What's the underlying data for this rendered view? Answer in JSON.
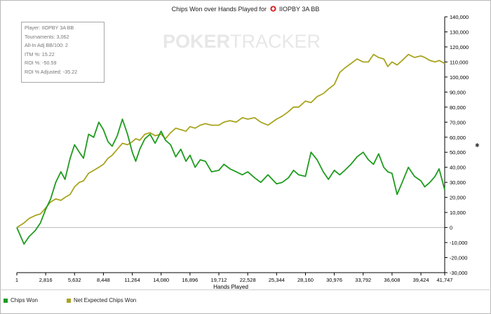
{
  "title": "Chips Won over Hands Played for",
  "title_player": "IIOPBY 3A BB",
  "watermark_a": "POKER",
  "watermark_b": "TRACKER",
  "info": [
    "Player: IIOPBY 3A BB",
    "Tournaments: 3,062",
    "All-In Adj BB/100: 2",
    "ITM %: 15.22",
    "ROI %: -50.59",
    "ROI % Adjusted: -35.22"
  ],
  "legend": {
    "chips_won": "Chips Won",
    "net_expected": "Net Expected Chips Won"
  },
  "colors": {
    "chips_won": "#1e9b1e",
    "net_expected": "#a9a41f",
    "axis": "#000000",
    "grid": "#b9b9b9"
  },
  "chart_data": {
    "type": "line",
    "title": "Chips Won over Hands Played for IIOPBY 3A BB",
    "xlabel": "Hands Played",
    "ylabel": "",
    "xlim": [
      1,
      41747
    ],
    "ylim": [
      -30000,
      140000
    ],
    "x_ticks": [
      1,
      2816,
      5632,
      8448,
      11264,
      14080,
      16896,
      19712,
      22528,
      25344,
      28160,
      30976,
      33792,
      36608,
      39424,
      41747
    ],
    "x_tick_labels": [
      "1",
      "2,816",
      "5,632",
      "8,448",
      "11,264",
      "14,080",
      "16,896",
      "19,712",
      "22,528",
      "25,344",
      "28,160",
      "30,976",
      "33,792",
      "36,608",
      "39,424",
      "41,747"
    ],
    "y_ticks": [
      -30000,
      -20000,
      -10000,
      0,
      10000,
      20000,
      30000,
      40000,
      50000,
      60000,
      70000,
      80000,
      90000,
      100000,
      110000,
      120000,
      130000,
      140000
    ],
    "y_tick_labels": [
      "-30,000",
      "-20,000",
      "-10,000",
      "0",
      "10,000",
      "20,000",
      "30,000",
      "40,000",
      "50,000",
      "60,000",
      "70,000",
      "80,000",
      "90,000",
      "100,000",
      "110,000",
      "120,000",
      "130,000",
      "140,000"
    ],
    "grid": "horizontal line at 0",
    "legend_position": "bottom-left",
    "series": [
      {
        "name": "Chips Won",
        "x": [
          1,
          700,
          1200,
          1800,
          2300,
          2816,
          3300,
          3800,
          4300,
          4700,
          5200,
          5632,
          6100,
          6500,
          7000,
          7500,
          8000,
          8448,
          8900,
          9300,
          9800,
          10300,
          10800,
          11264,
          11600,
          12000,
          12500,
          13000,
          13500,
          14080,
          14500,
          15000,
          15500,
          16000,
          16500,
          16896,
          17400,
          17900,
          18400,
          19000,
          19712,
          20200,
          20800,
          21400,
          22000,
          22528,
          23200,
          23800,
          24500,
          25344,
          25900,
          26500,
          27000,
          27500,
          28160,
          28700,
          29300,
          29900,
          30400,
          30976,
          31500,
          32000,
          32600,
          33200,
          33792,
          34300,
          34800,
          35300,
          35800,
          36200,
          36608,
          37100,
          37600,
          38200,
          38800,
          39424,
          39800,
          40300,
          40800,
          41200,
          41747
        ],
        "values": [
          0,
          -11000,
          -6000,
          -2000,
          3000,
          12000,
          19000,
          30000,
          37000,
          32000,
          46000,
          55000,
          50000,
          46000,
          62000,
          60000,
          70000,
          65000,
          57000,
          54000,
          61000,
          72000,
          62000,
          50000,
          44000,
          52000,
          59000,
          62000,
          56000,
          64000,
          58000,
          55000,
          47000,
          52000,
          44000,
          48000,
          40000,
          45000,
          44000,
          37000,
          38000,
          42000,
          39000,
          37000,
          35000,
          37000,
          33000,
          30000,
          35000,
          29000,
          30000,
          33000,
          38000,
          35000,
          34000,
          50000,
          45000,
          37000,
          32000,
          38000,
          35000,
          38000,
          42000,
          47000,
          50000,
          45000,
          42000,
          49000,
          40000,
          37000,
          36000,
          22000,
          30000,
          40000,
          34000,
          31000,
          27000,
          30000,
          34000,
          39000,
          25000
        ]
      },
      {
        "name": "Net Expected Chips Won",
        "x": [
          1,
          700,
          1200,
          1800,
          2300,
          2816,
          3300,
          3800,
          4300,
          4700,
          5200,
          5632,
          6100,
          6500,
          7000,
          7500,
          8000,
          8448,
          8900,
          9300,
          9800,
          10300,
          10800,
          11264,
          11600,
          12000,
          12500,
          13000,
          13500,
          14080,
          14500,
          15000,
          15500,
          16000,
          16500,
          16896,
          17400,
          17900,
          18400,
          19000,
          19712,
          20200,
          20800,
          21400,
          22000,
          22528,
          23200,
          23800,
          24500,
          25344,
          25900,
          26500,
          27000,
          27500,
          28160,
          28700,
          29300,
          29900,
          30400,
          30976,
          31500,
          32000,
          32600,
          33200,
          33792,
          34300,
          34800,
          35300,
          35800,
          36200,
          36608,
          37100,
          37600,
          38200,
          38800,
          39424,
          39800,
          40300,
          40800,
          41200,
          41747
        ],
        "values": [
          0,
          3000,
          6000,
          8000,
          9000,
          13000,
          17000,
          19000,
          18000,
          20000,
          22000,
          27000,
          30000,
          31000,
          36000,
          38000,
          40000,
          42000,
          46000,
          48000,
          52000,
          56000,
          55000,
          57000,
          59000,
          58000,
          62000,
          63000,
          61000,
          62000,
          59000,
          63000,
          66000,
          65000,
          64000,
          67000,
          66000,
          68000,
          69000,
          68000,
          68000,
          70000,
          71000,
          70000,
          73000,
          72000,
          73000,
          70000,
          68000,
          72000,
          74000,
          77000,
          80000,
          80000,
          84000,
          83000,
          87000,
          89000,
          92000,
          95000,
          103000,
          106000,
          109000,
          112000,
          110000,
          110000,
          115000,
          113000,
          112000,
          107000,
          110000,
          108000,
          111000,
          115000,
          113000,
          114000,
          113000,
          111000,
          110000,
          111000,
          109000
        ]
      }
    ]
  }
}
